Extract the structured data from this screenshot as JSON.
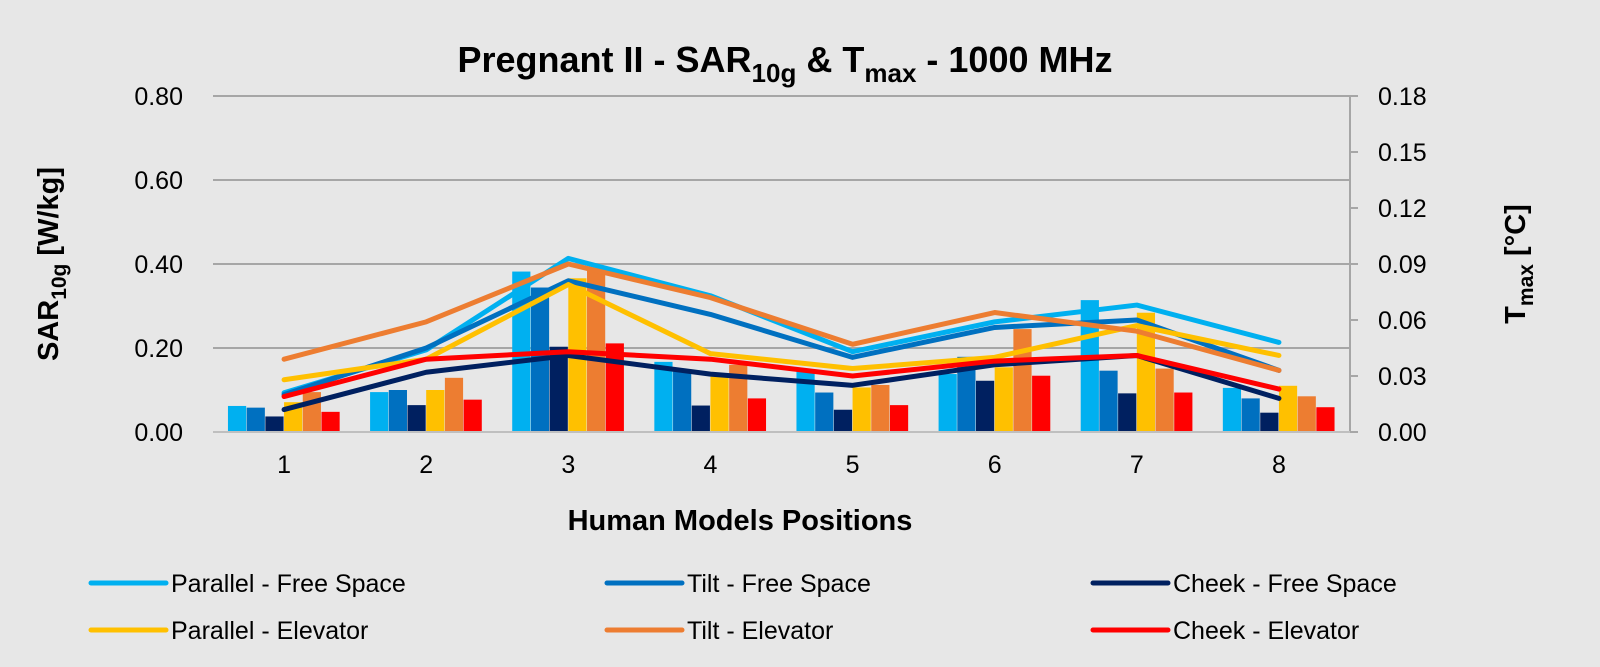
{
  "chart_data": {
    "type": "bar+line",
    "title": {
      "p1": "Pregnant II - SAR",
      "sub1": "10g",
      "p2": " & T",
      "sub2": "max",
      "p3": " - 1000 MHz"
    },
    "xlabel": "Human Models Positions",
    "ylabel": {
      "main": "SAR",
      "sub": "10g",
      "unit": " [W/kg]"
    },
    "y2label": {
      "main": "T",
      "sub": "max",
      "unit": " [°C]"
    },
    "categories": [
      "1",
      "2",
      "3",
      "4",
      "5",
      "6",
      "7",
      "8"
    ],
    "ylim": [
      0,
      0.8
    ],
    "yticks": [
      "0.00",
      "0.20",
      "0.40",
      "0.60",
      "0.80"
    ],
    "y2lim": [
      0,
      0.18
    ],
    "y2ticks": [
      "0.00",
      "0.03",
      "0.06",
      "0.09",
      "0.12",
      "0.15",
      "0.18"
    ],
    "grid": true,
    "legend_position": "bottom",
    "bar_series_axis": "left (SAR10g)",
    "line_series_axis": "right (Tmax)",
    "series": [
      {
        "name": "Parallel  - Free Space",
        "color": "#00b0f0",
        "bars": [
          0.062,
          0.095,
          0.382,
          0.167,
          0.15,
          0.138,
          0.314,
          0.105
        ],
        "line": [
          0.021,
          0.044,
          0.093,
          0.073,
          0.043,
          0.059,
          0.068,
          0.048
        ]
      },
      {
        "name": "Tilt  - Free Space",
        "color": "#0070c0",
        "bars": [
          0.058,
          0.1,
          0.344,
          0.144,
          0.094,
          0.179,
          0.146,
          0.08
        ],
        "line": [
          0.02,
          0.045,
          0.081,
          0.063,
          0.04,
          0.056,
          0.06,
          0.033
        ]
      },
      {
        "name": "Cheek - Free Space",
        "color": "#002060",
        "bars": [
          0.037,
          0.064,
          0.203,
          0.063,
          0.053,
          0.122,
          0.092,
          0.046
        ],
        "line": [
          0.012,
          0.032,
          0.041,
          0.031,
          0.025,
          0.036,
          0.041,
          0.018
        ]
      },
      {
        "name": "Parallel - Elevator",
        "color": "#ffc000",
        "bars": [
          0.071,
          0.1,
          0.366,
          0.132,
          0.106,
          0.154,
          0.284,
          0.11
        ],
        "line": [
          0.028,
          0.039,
          0.079,
          0.042,
          0.034,
          0.04,
          0.057,
          0.041
        ]
      },
      {
        "name": "Tilt - Elevator",
        "color": "#ed7d31",
        "bars": [
          0.095,
          0.129,
          0.39,
          0.16,
          0.112,
          0.245,
          0.151,
          0.085
        ],
        "line": [
          0.039,
          0.059,
          0.09,
          0.072,
          0.047,
          0.064,
          0.054,
          0.033
        ]
      },
      {
        "name": "Cheek - Elevator",
        "color": "#ff0000",
        "bars": [
          0.048,
          0.077,
          0.211,
          0.08,
          0.064,
          0.134,
          0.094,
          0.059
        ],
        "line": [
          0.019,
          0.039,
          0.043,
          0.039,
          0.03,
          0.038,
          0.041,
          0.023
        ]
      }
    ]
  }
}
